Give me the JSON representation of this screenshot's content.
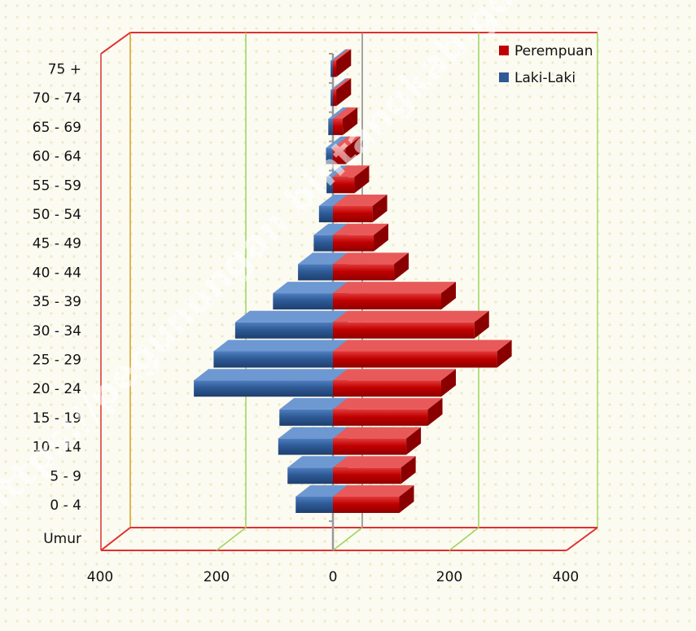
{
  "chart_data": {
    "type": "bar",
    "orientation": "horizontal",
    "style": "3d population pyramid",
    "categories": [
      "0 - 4",
      "5 - 9",
      "10 - 14",
      "15 - 19",
      "20 - 24",
      "25 - 29",
      "30 - 34",
      "35 - 39",
      "40 - 44",
      "45 - 49",
      "50 - 54",
      "55 - 59",
      "60 - 64",
      "65 - 69",
      "70 - 74",
      "75 +"
    ],
    "category_axis_title": "Umur",
    "series": [
      {
        "name": "Perempuan",
        "color": "#c00000",
        "side": "right",
        "values": [
          114,
          117,
          126,
          163,
          186,
          282,
          243,
          186,
          105,
          70,
          68,
          37,
          22,
          17,
          6,
          6
        ]
      },
      {
        "name": "Laki-Laki",
        "color": "#2e5a96",
        "side": "left",
        "values": [
          64,
          78,
          94,
          92,
          239,
          205,
          168,
          103,
          60,
          33,
          24,
          11,
          12,
          8,
          4,
          4
        ]
      }
    ],
    "xlim": [
      -400,
      400
    ],
    "xticks": [
      "400",
      "200",
      "0",
      "200",
      "400"
    ],
    "legend_position": "top-right",
    "watermark": "https://pegunungan bintangkab.go.id"
  }
}
